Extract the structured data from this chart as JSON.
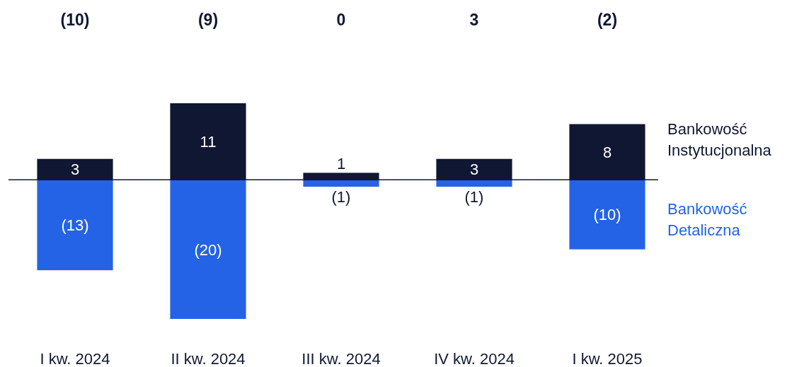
{
  "chart_data": {
    "type": "bar",
    "stacked": true,
    "legend": "right",
    "categories": [
      "I kw. 2024",
      "II kw. 2024",
      "III kw. 2024",
      "IV kw. 2024",
      "I kw. 2025"
    ],
    "series": [
      {
        "name": "Bankowość Instytucjonalna",
        "color": "#0f1733",
        "values": [
          3,
          11,
          1,
          3,
          8
        ],
        "value_labels": [
          "3",
          "11",
          "1",
          "3",
          "8"
        ]
      },
      {
        "name": "Bankowość Detaliczna",
        "color": "#2563e6",
        "values": [
          -13,
          -20,
          -1,
          -1,
          -10
        ],
        "value_labels": [
          "(13)",
          "(20)",
          "(1)",
          "(1)",
          "(10)"
        ]
      }
    ],
    "annotations": [
      "(10)",
      "(9)",
      "0",
      "3",
      "(2)"
    ]
  }
}
